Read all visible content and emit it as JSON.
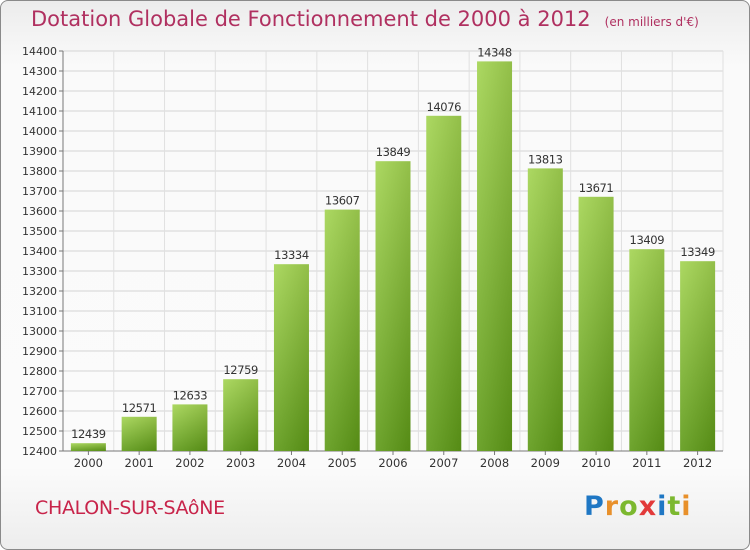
{
  "title": "Dotation Globale de Fonctionnement de 2000 à 2012",
  "unit_note": "(en milliers d'€)",
  "city": "CHALON-SUR-SAôNE",
  "brand": {
    "text": "Proxiti",
    "letter_colors": [
      "#1f77c4",
      "#e8902b",
      "#7cb82f",
      "#e23a3a",
      "#1f77c4",
      "#7cb82f",
      "#e8902b"
    ]
  },
  "colors": {
    "title": "#b03060",
    "city": "#c8244a",
    "bar_light": "#a3d451",
    "bar_dark": "#5e9a17"
  },
  "chart_data": {
    "type": "bar",
    "categories": [
      "2000",
      "2001",
      "2002",
      "2003",
      "2004",
      "2005",
      "2006",
      "2007",
      "2008",
      "2009",
      "2010",
      "2011",
      "2012"
    ],
    "values": [
      12439,
      12571,
      12633,
      12759,
      13334,
      13607,
      13849,
      14076,
      14348,
      13813,
      13671,
      13409,
      13349
    ],
    "title": "Dotation Globale de Fonctionnement de 2000 à 2012",
    "xlabel": "",
    "ylabel": "",
    "ylim": [
      12400,
      14400
    ],
    "yticks": [
      12400,
      12500,
      12600,
      12700,
      12800,
      12900,
      13000,
      13100,
      13200,
      13300,
      13400,
      13500,
      13600,
      13700,
      13800,
      13900,
      14000,
      14100,
      14200,
      14300,
      14400
    ],
    "grid": true,
    "data_labels": true
  }
}
